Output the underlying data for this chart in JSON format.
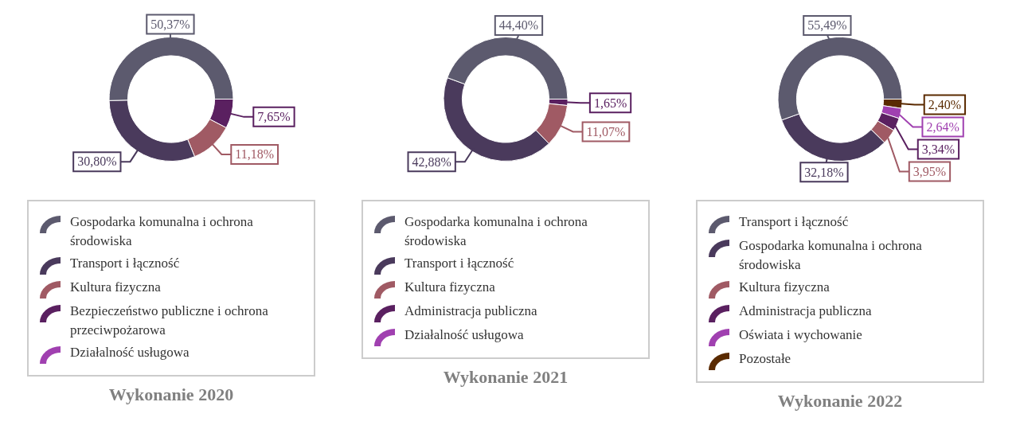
{
  "chart_data": [
    {
      "type": "donut",
      "title": "Wykonanie 2020",
      "legend": "bottom",
      "categories": [
        "Gospodarka komunalna i ochrona środowiska",
        "Transport i łączność",
        "Kultura fizyczna",
        "Bezpieczeństwo publiczne i ochrona przeciwpożarowa",
        "Działalność usługowa"
      ],
      "values": [
        50.37,
        30.8,
        11.18,
        7.65,
        0
      ],
      "colors": [
        "#5c5a6e",
        "#4a3a5c",
        "#a05a64",
        "#5a2060",
        "#a040b0"
      ],
      "value_labels": [
        "50,37%",
        "30,80%",
        "11,18%",
        "7,65%",
        null
      ]
    },
    {
      "type": "donut",
      "title": "Wykonanie 2021",
      "legend": "bottom",
      "categories": [
        "Gospodarka komunalna i ochrona środowiska",
        "Transport i łączność",
        "Kultura fizyczna",
        "Administracja publiczna",
        "Działalność usługowa"
      ],
      "values": [
        44.4,
        42.88,
        11.07,
        1.65,
        0
      ],
      "colors": [
        "#5c5a6e",
        "#4a3a5c",
        "#a05a64",
        "#5a2060",
        "#a040b0"
      ],
      "value_labels": [
        "44,40%",
        "42,88%",
        "11,07%",
        "1,65%",
        null
      ]
    },
    {
      "type": "donut",
      "title": "Wykonanie 2022",
      "legend": "bottom",
      "categories": [
        "Transport i łączność",
        "Gospodarka komunalna i ochrona środowiska",
        "Kultura fizyczna",
        "Administracja publiczna",
        "Oświata i wychowanie",
        "Pozostałe"
      ],
      "values": [
        55.49,
        32.18,
        3.95,
        3.34,
        2.64,
        2.4
      ],
      "colors": [
        "#5c5a6e",
        "#4a3a5c",
        "#a05a64",
        "#5a2060",
        "#a040b0",
        "#5a2a00"
      ],
      "value_labels": [
        "55,49%",
        "32,18%",
        "3,95%",
        "3,34%",
        "2,64%",
        "2,40%"
      ]
    }
  ]
}
